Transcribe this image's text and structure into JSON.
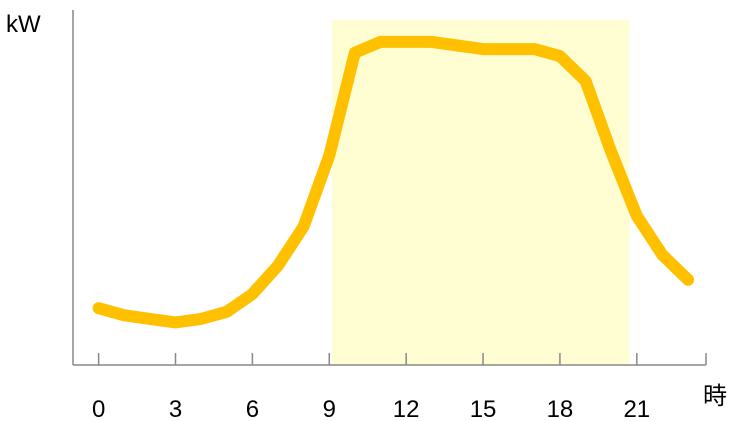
{
  "chart_data": {
    "type": "line",
    "title": "",
    "xlabel": "時",
    "ylabel": "kW",
    "xlim": [
      -1,
      23.7
    ],
    "ylim": [
      0,
      100
    ],
    "xticks": [
      0,
      3,
      6,
      9,
      12,
      15,
      18,
      21
    ],
    "tick_labels": [
      "0",
      "3",
      "6",
      "9",
      "12",
      "15",
      "18",
      "21"
    ],
    "y_tick_labels": false,
    "grid": false,
    "highlight_band": {
      "x": [
        9.1,
        20.7
      ],
      "color": "#FFFED2"
    },
    "series": [
      {
        "color": "#FFC000",
        "x": [
          0,
          1,
          2,
          3,
          4,
          5,
          6,
          7,
          8,
          9,
          10,
          11,
          12,
          13,
          14,
          15,
          16,
          17,
          18,
          19,
          20,
          21,
          22,
          23
        ],
        "y": [
          16,
          14,
          13,
          12,
          13,
          15,
          20,
          28,
          39,
          59,
          88,
          91,
          91,
          91,
          90,
          89,
          89,
          89,
          87,
          80,
          60,
          42,
          31,
          24
        ]
      }
    ]
  }
}
